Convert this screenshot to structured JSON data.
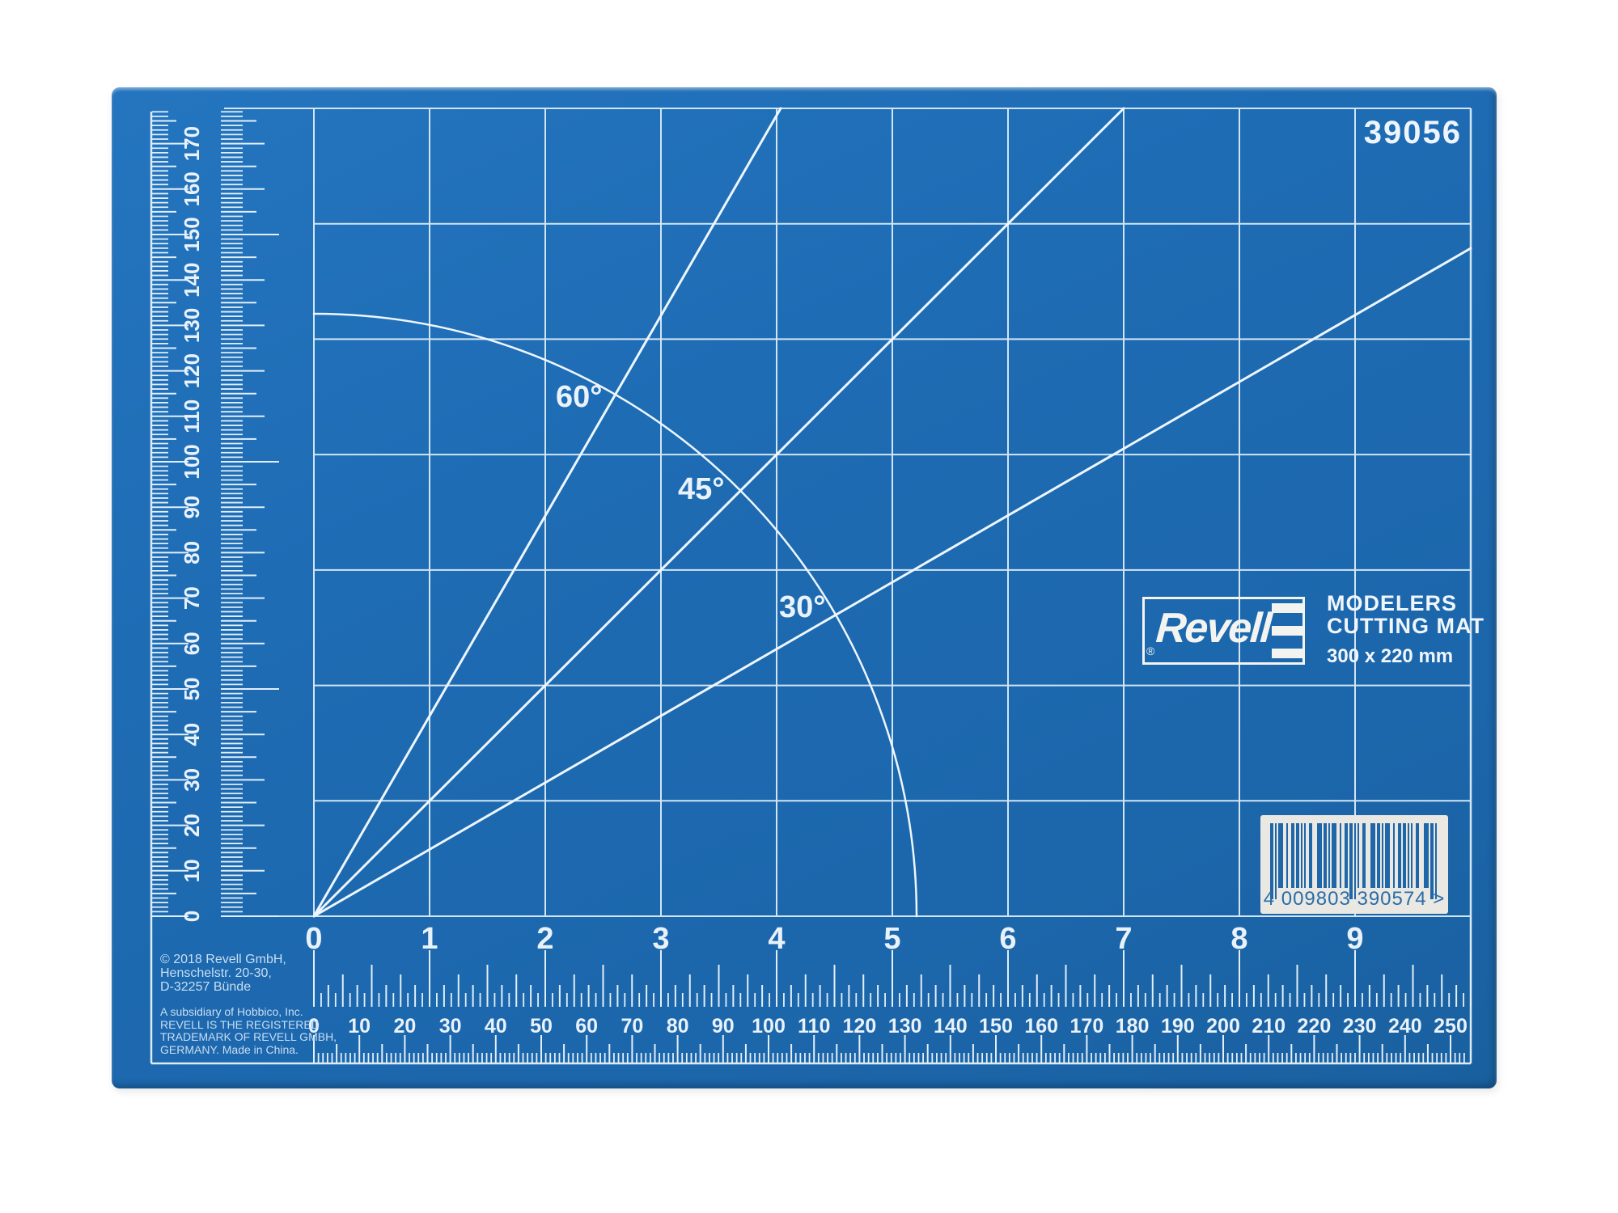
{
  "product": {
    "code": "39056",
    "brand": "Revell",
    "registered_mark": "®",
    "title_line1": "MODELERS",
    "title_line2": "CUTTING MAT",
    "size_label": "300 x 220 mm",
    "barcode_number": "4 009803 390574 >"
  },
  "angles": {
    "a60": "60°",
    "a45": "45°",
    "a30": "30°"
  },
  "rulers": {
    "left_mm_labels": [
      "0",
      "10",
      "20",
      "30",
      "40",
      "50",
      "60",
      "70",
      "80",
      "90",
      "100",
      "110",
      "120",
      "130",
      "140",
      "150",
      "160",
      "170"
    ],
    "bottom_inch_labels": [
      "0",
      "1",
      "2",
      "3",
      "4",
      "5",
      "6",
      "7",
      "8",
      "9"
    ],
    "bottom_mm_labels": [
      "0",
      "10",
      "20",
      "30",
      "40",
      "50",
      "60",
      "70",
      "80",
      "90",
      "100",
      "110",
      "120",
      "130",
      "140",
      "150",
      "160",
      "170",
      "180",
      "190",
      "200",
      "210",
      "220",
      "230",
      "240",
      "250"
    ]
  },
  "legal": {
    "copyright_line1": "© 2018 Revell GmbH,",
    "copyright_line2": "Henschelstr. 20-30,",
    "copyright_line3": "D-32257 Bünde",
    "trademark_line1": "A subsidiary of Hobbico, Inc.",
    "trademark_line2": "REVELL IS THE REGISTERED",
    "trademark_line3": "TRADEMARK OF REVELL GMBH,",
    "trademark_line4": "GERMANY. Made in China."
  },
  "colors": {
    "mat_blue": "#1e6cb4",
    "grid_line": "#d2e5f4",
    "accent_line": "#eef6fd",
    "tick": "#e2eff9",
    "barcode_bg": "#e9e8e2",
    "bar_blue": "#1f67a9"
  }
}
